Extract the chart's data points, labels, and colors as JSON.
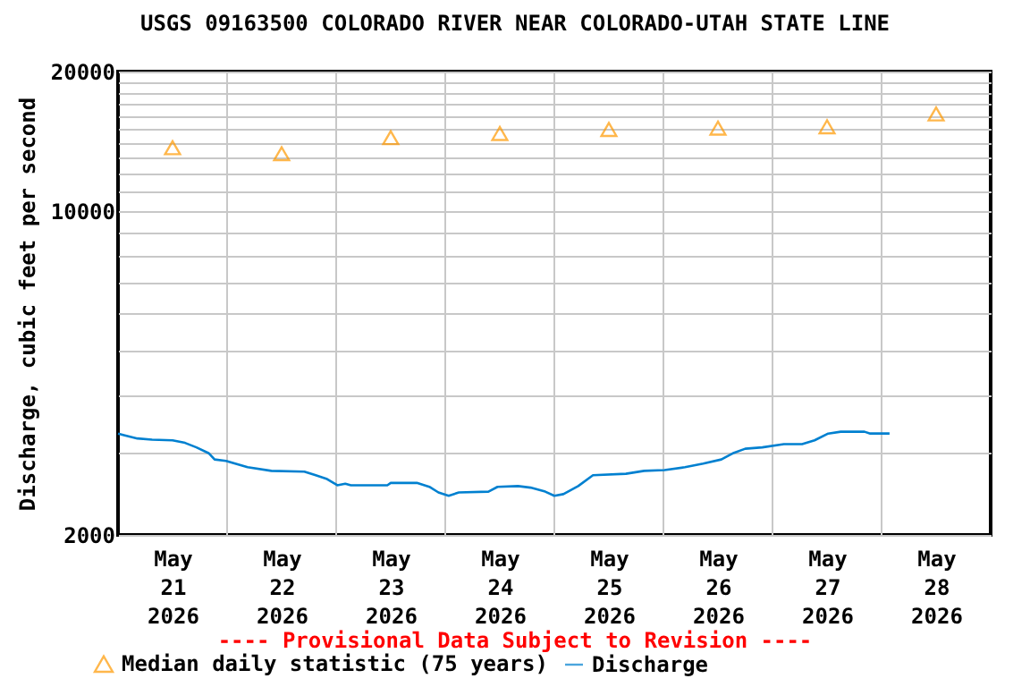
{
  "chart_data": {
    "type": "line",
    "title": "USGS 09163500 COLORADO RIVER NEAR COLORADO-UTAH STATE LINE",
    "ylabel": "Discharge, cubic feet per second",
    "log": true,
    "grid": true,
    "legend": "bottom",
    "xlim": [
      "2026-05-21",
      "2026-05-29"
    ],
    "xticks": [
      {
        "value": "2026-05-21T12:00",
        "label": "May\n21\n2026"
      },
      {
        "value": "2026-05-22T00:00",
        "label": null
      },
      {
        "value": "2026-05-22T12:00",
        "label": "May\n22\n2026"
      },
      {
        "value": "2026-05-23T00:00",
        "label": null
      },
      {
        "value": "2026-05-23T12:00",
        "label": "May\n23\n2026"
      },
      {
        "value": "2026-05-24T00:00",
        "label": null
      },
      {
        "value": "2026-05-24T12:00",
        "label": "May\n24\n2026"
      },
      {
        "value": "2026-05-25T00:00",
        "label": null
      },
      {
        "value": "2026-05-25T12:00",
        "label": "May\n25\n2026"
      },
      {
        "value": "2026-05-26T00:00",
        "label": null
      },
      {
        "value": "2026-05-26T12:00",
        "label": "May\n26\n2026"
      },
      {
        "value": "2026-05-27T00:00",
        "label": null
      },
      {
        "value": "2026-05-27T12:00",
        "label": "May\n27\n2026"
      },
      {
        "value": "2026-05-28T00:00",
        "label": null
      },
      {
        "value": "2026-05-28T12:00",
        "label": "May\n28\n2026"
      }
    ],
    "ylim": [
      2000,
      20000
    ],
    "yticks": [
      2000,
      {
        "value": 3000,
        "label": null
      },
      {
        "value": 4000,
        "label": null
      },
      {
        "value": 5000,
        "label": null
      },
      {
        "value": 6000,
        "label": null
      },
      {
        "value": 7000,
        "label": null
      },
      {
        "value": 8000,
        "label": null
      },
      {
        "value": 9000,
        "label": null
      },
      10000,
      {
        "value": 11000,
        "label": null
      },
      {
        "value": 12000,
        "label": null
      },
      {
        "value": 13000,
        "label": null
      },
      {
        "value": 14000,
        "label": null
      },
      {
        "value": 15000,
        "label": null
      },
      {
        "value": 16000,
        "label": null
      },
      {
        "value": 17000,
        "label": null
      },
      {
        "value": 18000,
        "label": null
      },
      {
        "value": 19000,
        "label": null
      },
      20000
    ],
    "annotations": [
      "---- Provisional Data Subject to Revision ----"
    ],
    "series": [
      {
        "name": "Median daily statistic (75 years)",
        "type": "scatter",
        "marker": "triangle",
        "color": "#ff9900",
        "x": [
          "2026-05-21T12:00",
          "2026-05-22T12:00",
          "2026-05-23T12:00",
          "2026-05-24T12:00",
          "2026-05-25T12:00",
          "2026-05-26T12:00",
          "2026-05-27T12:00",
          "2026-05-28T12:00"
        ],
        "values": [
          13700,
          13300,
          14400,
          14700,
          15000,
          15100,
          15200,
          16200
        ]
      },
      {
        "name": "Discharge",
        "color": "#0080d0",
        "x": [
          "2026-05-21T00:00",
          "2026-05-21T01:30",
          "2026-05-21T04:15",
          "2026-05-21T07:30",
          "2026-05-21T12:00",
          "2026-05-21T14:45",
          "2026-05-21T17:15",
          "2026-05-21T20:00",
          "2026-05-21T21:15",
          "2026-05-21T23:45",
          "2026-05-22T04:30",
          "2026-05-22T09:45",
          "2026-05-22T17:00",
          "2026-05-22T19:30",
          "2026-05-22T22:00",
          "2026-05-23T00:15",
          "2026-05-23T02:00",
          "2026-05-23T03:15",
          "2026-05-23T11:15",
          "2026-05-23T12:00",
          "2026-05-23T17:45",
          "2026-05-23T20:30",
          "2026-05-23T22:30",
          "2026-05-24T00:45",
          "2026-05-24T03:00",
          "2026-05-24T09:30",
          "2026-05-24T11:30",
          "2026-05-24T16:00",
          "2026-05-24T18:45",
          "2026-05-24T22:00",
          "2026-05-25T00:00",
          "2026-05-25T02:00",
          "2026-05-25T05:15",
          "2026-05-25T08:30",
          "2026-05-25T15:45",
          "2026-05-25T19:45",
          "2026-05-26T00:15",
          "2026-05-26T04:45",
          "2026-05-26T08:45",
          "2026-05-26T12:45",
          "2026-05-26T15:15",
          "2026-05-26T18:00",
          "2026-05-26T21:45",
          "2026-05-27T02:30",
          "2026-05-27T06:30",
          "2026-05-27T09:15",
          "2026-05-27T12:15",
          "2026-05-27T15:00",
          "2026-05-27T20:15",
          "2026-05-27T21:30",
          "2026-05-28T01:45"
        ],
        "values": [
          3310,
          3280,
          3230,
          3210,
          3200,
          3160,
          3090,
          3000,
          2910,
          2890,
          2800,
          2750,
          2740,
          2690,
          2640,
          2560,
          2580,
          2560,
          2560,
          2590,
          2590,
          2540,
          2470,
          2430,
          2470,
          2480,
          2540,
          2550,
          2530,
          2480,
          2430,
          2450,
          2550,
          2690,
          2710,
          2750,
          2760,
          2800,
          2850,
          2910,
          3000,
          3070,
          3090,
          3140,
          3140,
          3200,
          3310,
          3340,
          3340,
          3310,
          3310
        ]
      }
    ]
  }
}
